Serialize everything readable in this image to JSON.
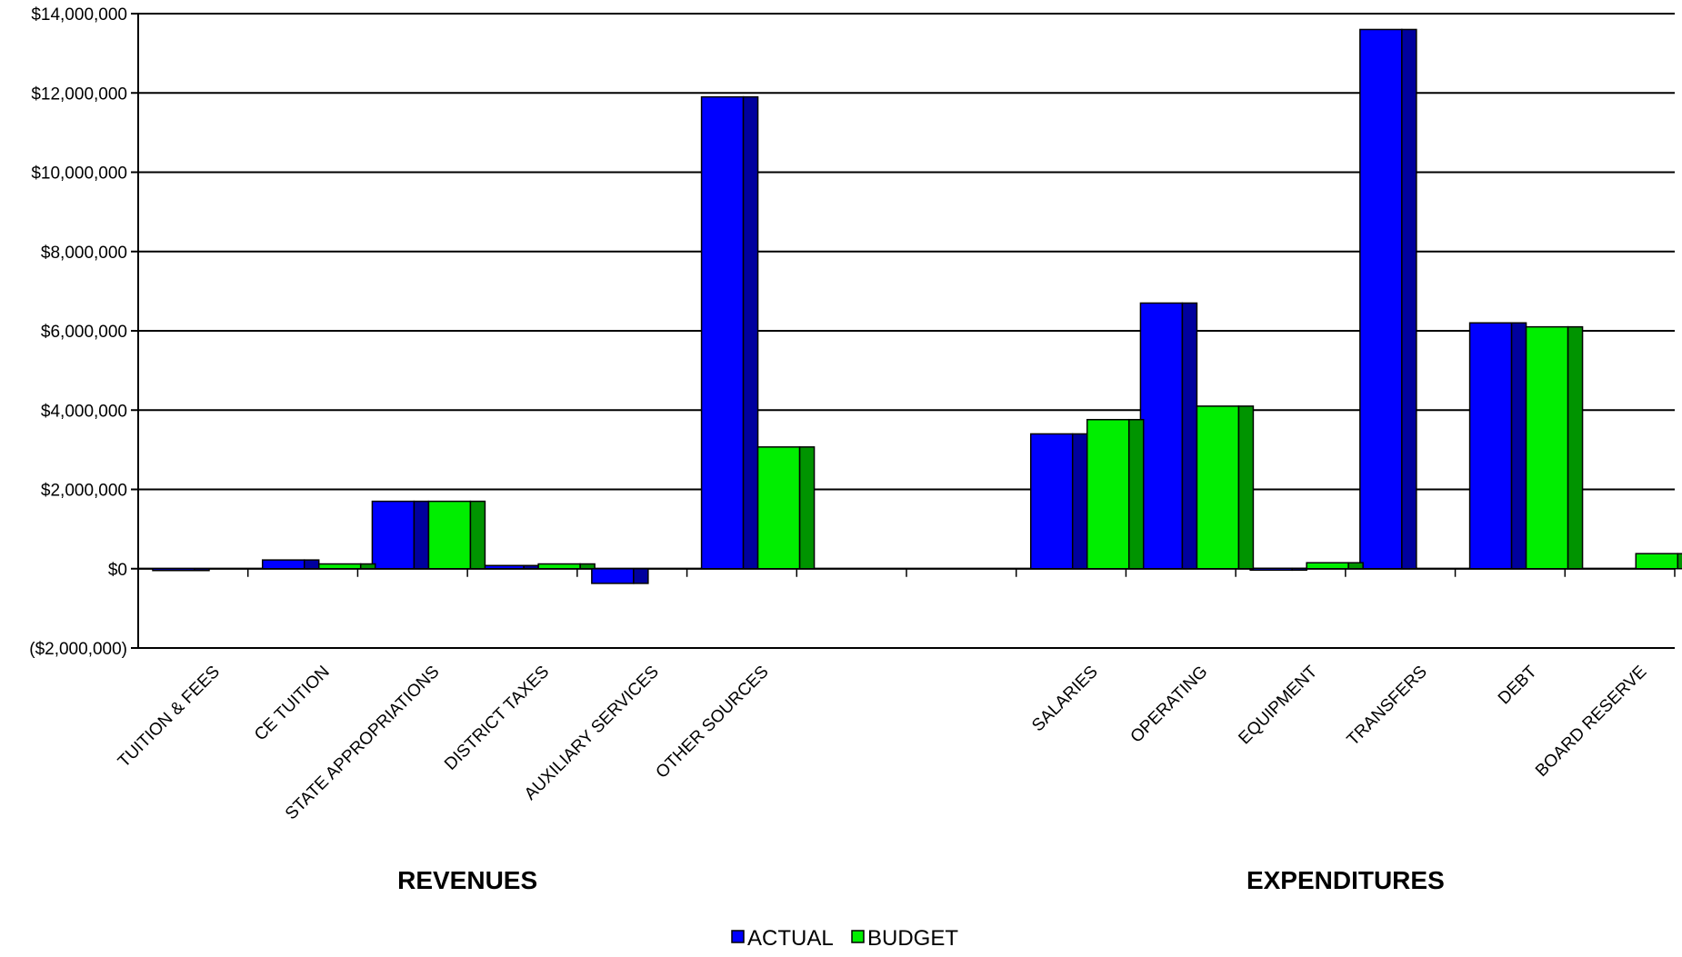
{
  "chart_data": {
    "type": "bar",
    "categories": [
      "TUITION & FEES",
      "CE TUITION",
      "STATE APPROPRIATIONS",
      "DISTRICT TAXES",
      "AUXILIARY SERVICES",
      "OTHER SOURCES",
      "",
      "",
      "SALARIES",
      "OPERATING",
      "EQUIPMENT",
      "TRANSFERS",
      "DEBT",
      "BOARD RESERVE"
    ],
    "series": [
      {
        "name": "ACTUAL",
        "color": "#0000ff",
        "values": [
          -30000,
          220000,
          1700000,
          80000,
          -370000,
          11900000,
          0,
          0,
          3400000,
          6700000,
          10000,
          13600000,
          6200000,
          0
        ]
      },
      {
        "name": "BUDGET",
        "color": "#00ee00",
        "values": [
          0,
          120000,
          1700000,
          120000,
          0,
          3070000,
          0,
          0,
          3760000,
          4100000,
          150000,
          0,
          6100000,
          380000
        ]
      }
    ],
    "ylim": [
      -2000000,
      14000000
    ],
    "yticks": [
      {
        "value": 14000000,
        "label": "$14,000,000"
      },
      {
        "value": 12000000,
        "label": "$12,000,000"
      },
      {
        "value": 10000000,
        "label": "$10,000,000"
      },
      {
        "value": 8000000,
        "label": "$8,000,000"
      },
      {
        "value": 6000000,
        "label": "$6,000,000"
      },
      {
        "value": 4000000,
        "label": "$4,000,000"
      },
      {
        "value": 2000000,
        "label": "$2,000,000"
      },
      {
        "value": 0,
        "label": "$0"
      },
      {
        "value": -2000000,
        "label": "($2,000,000)"
      }
    ],
    "groups": [
      {
        "label": "REVENUES",
        "from": 0,
        "to": 5
      },
      {
        "label": "EXPENDITURES",
        "from": 8,
        "to": 13
      }
    ],
    "legend_position": "bottom",
    "grid": true
  }
}
